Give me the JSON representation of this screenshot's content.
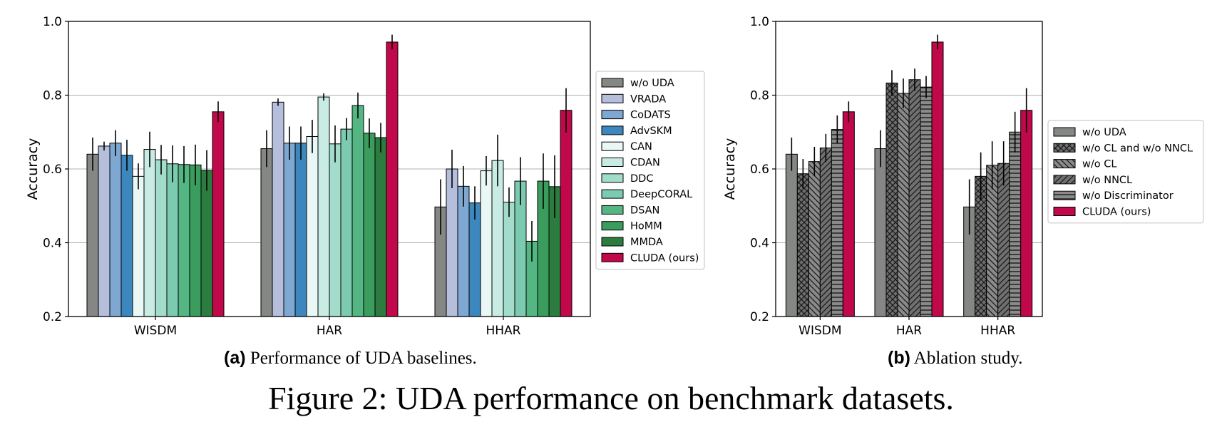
{
  "chart_data": [
    {
      "type": "bar",
      "ylabel": "Accuracy",
      "ylim": [
        0.2,
        1.0
      ],
      "yticks": [
        "0.2",
        "0.4",
        "0.6",
        "0.8",
        "1.0"
      ],
      "grid": "horizontal",
      "legend_position": "right",
      "categories": [
        "WISDM",
        "HAR",
        "HHAR"
      ],
      "caption_label": "(a)",
      "caption_text": "Performance of UDA baselines.",
      "series": [
        {
          "name": "w/o UDA",
          "color": "#858784",
          "values": [
            0.64,
            0.655,
            0.497
          ],
          "errors": [
            0.045,
            0.05,
            0.075
          ]
        },
        {
          "name": "VRADA",
          "color": "#b5bedb",
          "values": [
            0.662,
            0.781,
            0.6
          ],
          "errors": [
            0.012,
            0.01,
            0.052
          ]
        },
        {
          "name": "CoDATS",
          "color": "#7ea8d2",
          "values": [
            0.67,
            0.67,
            0.553
          ],
          "errors": [
            0.035,
            0.045,
            0.055
          ]
        },
        {
          "name": "AdvSKM",
          "color": "#3d87bf",
          "values": [
            0.637,
            0.67,
            0.508
          ],
          "errors": [
            0.042,
            0.045,
            0.045
          ]
        },
        {
          "name": "CAN",
          "color": "#e9f7f5",
          "values": [
            0.58,
            0.688,
            0.595
          ],
          "errors": [
            0.035,
            0.045,
            0.04
          ]
        },
        {
          "name": "CDAN",
          "color": "#c8ebe3",
          "values": [
            0.653,
            0.795,
            0.623
          ],
          "errors": [
            0.048,
            0.01,
            0.07
          ]
        },
        {
          "name": "DDC",
          "color": "#a3dccb",
          "values": [
            0.625,
            0.668,
            0.51
          ],
          "errors": [
            0.04,
            0.05,
            0.04
          ]
        },
        {
          "name": "DeepCORAL",
          "color": "#7ccbb0",
          "values": [
            0.614,
            0.708,
            0.567
          ],
          "errors": [
            0.05,
            0.03,
            0.065
          ]
        },
        {
          "name": "DSAN",
          "color": "#54b682",
          "values": [
            0.612,
            0.772,
            0.404
          ],
          "errors": [
            0.05,
            0.035,
            0.055
          ]
        },
        {
          "name": "HoMM",
          "color": "#3a9c5d",
          "values": [
            0.611,
            0.697,
            0.567
          ],
          "errors": [
            0.055,
            0.04,
            0.075
          ]
        },
        {
          "name": "MMDA",
          "color": "#2c7c3f",
          "values": [
            0.596,
            0.685,
            0.552
          ],
          "errors": [
            0.055,
            0.04,
            0.085
          ]
        },
        {
          "name": "CLUDA (ours)",
          "color": "#c0084a",
          "values": [
            0.755,
            0.944,
            0.759
          ],
          "errors": [
            0.028,
            0.02,
            0.06
          ]
        }
      ]
    },
    {
      "type": "bar",
      "ylabel": "Accuracy",
      "ylim": [
        0.2,
        1.0
      ],
      "yticks": [
        "0.2",
        "0.4",
        "0.6",
        "0.8",
        "1.0"
      ],
      "grid": "horizontal",
      "legend_position": "right",
      "categories": [
        "WISDM",
        "HAR",
        "HHAR"
      ],
      "caption_label": "(b)",
      "caption_text": "Ablation study.",
      "series": [
        {
          "name": "w/o UDA",
          "color": "#858784",
          "pattern": "none",
          "values": [
            0.64,
            0.655,
            0.497
          ],
          "errors": [
            0.045,
            0.05,
            0.075
          ]
        },
        {
          "name": "w/o CL and w/o NNCL",
          "color": "#6e6e6e",
          "pattern": "cross",
          "values": [
            0.587,
            0.833,
            0.58
          ],
          "errors": [
            0.04,
            0.035,
            0.065
          ]
        },
        {
          "name": "w/o CL",
          "color": "#808080",
          "pattern": "backslash",
          "values": [
            0.62,
            0.805,
            0.61
          ],
          "errors": [
            0.04,
            0.04,
            0.065
          ]
        },
        {
          "name": "w/o NNCL",
          "color": "#6e6e6e",
          "pattern": "slash",
          "values": [
            0.657,
            0.842,
            0.615
          ],
          "errors": [
            0.038,
            0.03,
            0.06
          ]
        },
        {
          "name": "w/o Discriminator",
          "color": "#7a7a7a",
          "pattern": "horizontal",
          "values": [
            0.707,
            0.822,
            0.7
          ],
          "errors": [
            0.038,
            0.03,
            0.055
          ]
        },
        {
          "name": "CLUDA (ours)",
          "color": "#c0084a",
          "pattern": "none",
          "values": [
            0.755,
            0.944,
            0.759
          ],
          "errors": [
            0.028,
            0.02,
            0.06
          ]
        }
      ]
    }
  ],
  "figure_caption": "Figure 2: UDA performance on benchmark datasets."
}
